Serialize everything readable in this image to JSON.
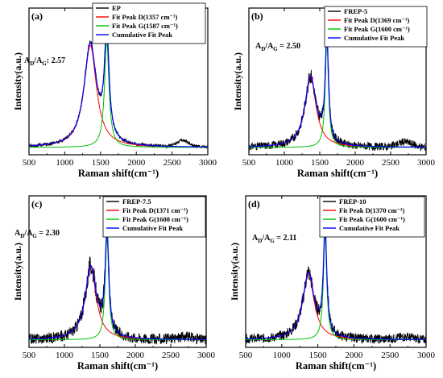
{
  "colors": {
    "data": "#000000",
    "peak_d": "#ff0000",
    "peak_g": "#00c000",
    "cumulative": "#0000ff"
  },
  "chart_data": [
    {
      "panel": "(a)",
      "type": "line",
      "xlabel": "Raman shift(cm⁻¹)",
      "ylabel": "Intensity(a.u.)",
      "xlim": [
        500,
        3000
      ],
      "xticks": [
        500,
        1000,
        1500,
        2000,
        2500,
        3000
      ],
      "ratio_label": "A",
      "ratio_sub_d": "D",
      "ratio_mid": "/A",
      "ratio_sub_g": "G",
      "ratio_value": ": 2.57",
      "legend_placement": "top-right",
      "legend": [
        {
          "label": "EP",
          "color": "#000000"
        },
        {
          "label": "Fit Peak D(1357 cm⁻¹)",
          "color": "#ff0000"
        },
        {
          "label": "Fit Peak G(1587 cm⁻¹)",
          "color": "#00c000"
        },
        {
          "label": "Cumulative Fit Peak",
          "color": "#0000ff"
        }
      ],
      "peaks": {
        "d_center": 1357,
        "d_width": 105,
        "d_height": 0.8,
        "g_center": 1587,
        "g_width": 38,
        "g_height": 0.83
      },
      "baseline": 0.0,
      "noise": 0.012,
      "bump": {
        "center": 2650,
        "width": 120,
        "height": 0.05
      }
    },
    {
      "panel": "(b)",
      "type": "line",
      "xlabel": "Raman shift(cm⁻¹)",
      "ylabel": "Intensity(a.u.)",
      "xlim": [
        500,
        3000
      ],
      "xticks": [
        500,
        1000,
        1500,
        2000,
        2500,
        3000
      ],
      "ratio_label": "A",
      "ratio_sub_d": "D",
      "ratio_mid": "/A",
      "ratio_sub_g": "G",
      "ratio_value": " = 2.50",
      "legend_placement": "top-right",
      "legend": [
        {
          "label": "FREP-5",
          "color": "#000000"
        },
        {
          "label": "Fit Peak D(1369 cm⁻¹)",
          "color": "#ff0000"
        },
        {
          "label": "Fit Peak G(1600 cm⁻¹)",
          "color": "#00c000"
        },
        {
          "label": "Cumulative Fit Peak",
          "color": "#0000ff"
        }
      ],
      "peaks": {
        "d_center": 1369,
        "d_width": 95,
        "d_height": 0.55,
        "g_center": 1600,
        "g_width": 28,
        "g_height": 0.82
      },
      "baseline": 0.0,
      "noise": 0.03,
      "bump": {
        "center": 2700,
        "width": 150,
        "height": 0.04
      }
    },
    {
      "panel": "(c)",
      "type": "line",
      "xlabel": "Raman shift(cm⁻¹)",
      "ylabel": "Intensity(a.u.)",
      "xlim": [
        500,
        3000
      ],
      "xticks": [
        500,
        1000,
        1500,
        2000,
        2500,
        3000
      ],
      "ratio_label": "A",
      "ratio_sub_d": "D",
      "ratio_mid": "/A",
      "ratio_sub_g": "G",
      "ratio_value": " = 2.30",
      "legend_placement": "top-right",
      "legend": [
        {
          "label": "FREP-7.5",
          "color": "#000000"
        },
        {
          "label": "Fit Peak D(1371 cm⁻¹)",
          "color": "#ff0000"
        },
        {
          "label": "Fit Peak G(1600 cm⁻¹)",
          "color": "#00c000"
        },
        {
          "label": "Cumulative Fit Peak",
          "color": "#0000ff"
        }
      ],
      "peaks": {
        "d_center": 1371,
        "d_width": 95,
        "d_height": 0.55,
        "g_center": 1600,
        "g_width": 30,
        "g_height": 0.78
      },
      "baseline": 0.0,
      "noise": 0.04,
      "bump": {
        "center": 2700,
        "width": 150,
        "height": 0.02
      }
    },
    {
      "panel": "(d)",
      "type": "line",
      "xlabel": "Raman shift(cm⁻¹)",
      "ylabel": "Intensity(a.u.)",
      "xlim": [
        500,
        3000
      ],
      "xticks": [
        500,
        1000,
        1500,
        2000,
        2500,
        3000
      ],
      "ratio_label": "A",
      "ratio_sub_d": "D",
      "ratio_mid": "/A",
      "ratio_sub_g": "G",
      "ratio_value": " = 2.11",
      "legend_placement": "top-right",
      "legend": [
        {
          "label": "FREP-10",
          "color": "#000000"
        },
        {
          "label": "Fit Peak D(1370 cm⁻¹)",
          "color": "#ff0000"
        },
        {
          "label": "Fit Peak G(1600 cm⁻¹)",
          "color": "#00c000"
        },
        {
          "label": "Cumulative Fit Peak",
          "color": "#0000ff"
        }
      ],
      "peaks": {
        "d_center": 1370,
        "d_width": 95,
        "d_height": 0.5,
        "g_center": 1600,
        "g_width": 28,
        "g_height": 0.8
      },
      "baseline": 0.0,
      "noise": 0.035,
      "bump": {
        "center": 2700,
        "width": 150,
        "height": 0.02
      }
    }
  ]
}
